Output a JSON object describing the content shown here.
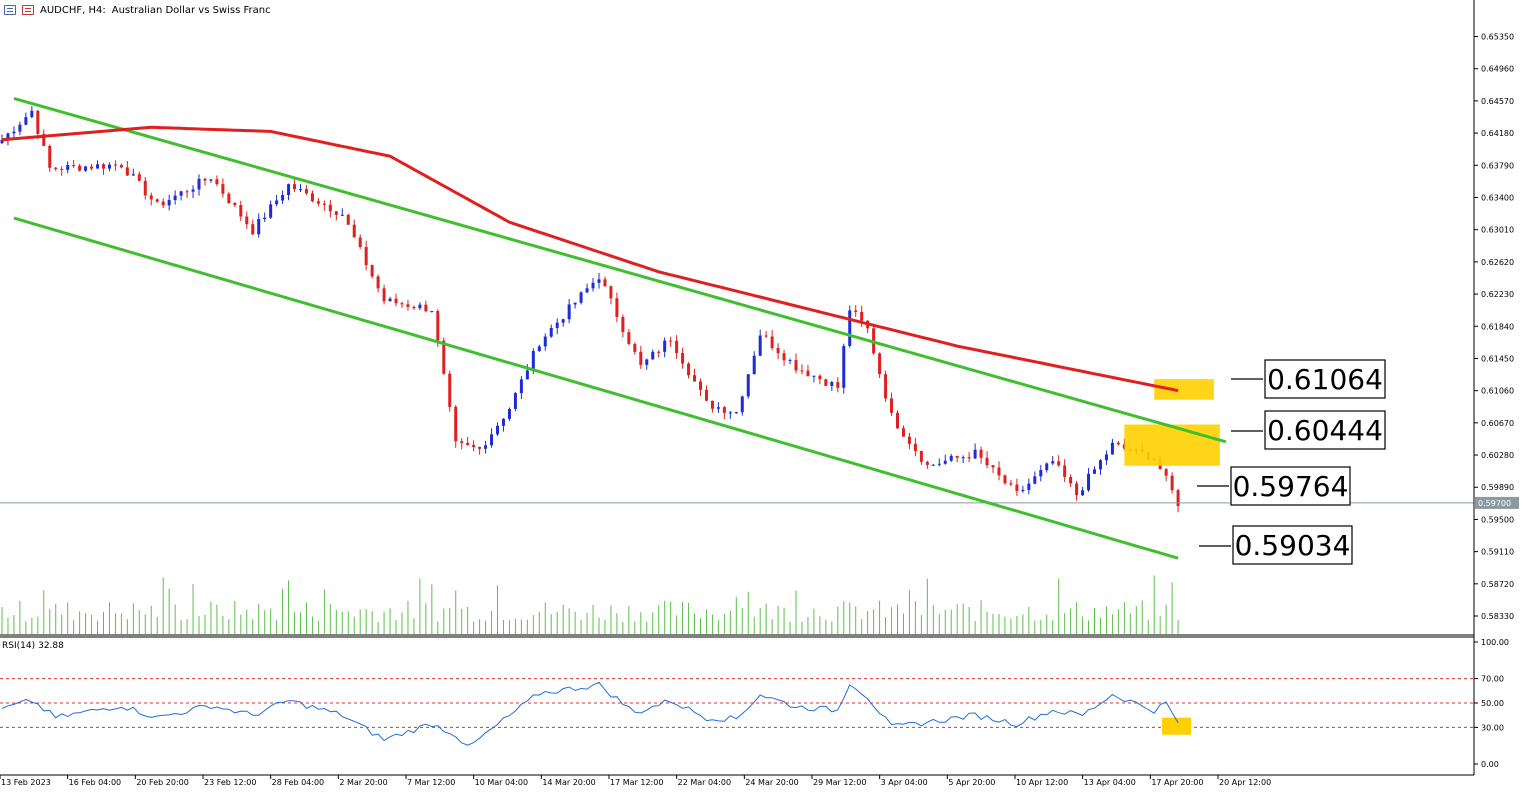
{
  "header": {
    "symbol_timeframe": "AUDCHF, H4:",
    "description": "Australian Dollar vs Swiss Franc"
  },
  "price_axis_ticks": [
    "0.65350",
    "0.64960",
    "0.64570",
    "0.64180",
    "0.63790",
    "0.63400",
    "0.63010",
    "0.62620",
    "0.62230",
    "0.61840",
    "0.61450",
    "0.61060",
    "0.60670",
    "0.60280",
    "0.59890",
    "0.59500",
    "0.59110",
    "0.58720",
    "0.58330"
  ],
  "current_price_tag": "0.59700",
  "rsi": {
    "name": "RSI(14)",
    "value": "32.88",
    "ticks": [
      "100.00",
      "70.00",
      "50.00",
      "30.00",
      "0.00"
    ],
    "levels": [
      70,
      50,
      30
    ],
    "current_marker_color": "#ffd000",
    "line_color": "#1e6fd9",
    "level_color": "#e03030"
  },
  "time_axis_labels": [
    "13 Feb 2023",
    "16 Feb 04:00",
    "20 Feb 20:00",
    "23 Feb 12:00",
    "28 Feb 04:00",
    "2 Mar 20:00",
    "7 Mar 12:00",
    "10 Mar 04:00",
    "14 Mar 20:00",
    "17 Mar 12:00",
    "22 Mar 04:00",
    "24 Mar 20:00",
    "29 Mar 12:00",
    "3 Apr 04:00",
    "5 Apr 20:00",
    "10 Apr 12:00",
    "13 Apr 04:00",
    "17 Apr 20:00",
    "20 Apr 12:00"
  ],
  "level_callouts": [
    {
      "label": "0.61064"
    },
    {
      "label": "0.60444"
    },
    {
      "label": "0.59764"
    },
    {
      "label": "0.59034"
    }
  ],
  "colors": {
    "bull_candle": "#1d2cd9",
    "bear_candle": "#e01f1f",
    "moving_average": "#e01f1f",
    "channel": "#3fbf2f",
    "volume": "#5bbf4a",
    "highlight": "#ffd000",
    "grid": "#000000"
  },
  "chart_data": {
    "type": "candlestick",
    "symbol": "AUDCHF",
    "timeframe": "H4",
    "ylim": [
      0.581,
      0.6555
    ],
    "n_bars": 198,
    "key_points": [
      {
        "bar": 0,
        "close": 0.641
      },
      {
        "bar": 5,
        "close": 0.6445
      },
      {
        "bar": 8,
        "close": 0.6375
      },
      {
        "bar": 20,
        "close": 0.638
      },
      {
        "bar": 26,
        "close": 0.633
      },
      {
        "bar": 35,
        "close": 0.6365
      },
      {
        "bar": 42,
        "close": 0.63
      },
      {
        "bar": 48,
        "close": 0.6355
      },
      {
        "bar": 57,
        "close": 0.632
      },
      {
        "bar": 64,
        "close": 0.6215
      },
      {
        "bar": 72,
        "close": 0.6205
      },
      {
        "bar": 76,
        "close": 0.604
      },
      {
        "bar": 80,
        "close": 0.6035
      },
      {
        "bar": 85,
        "close": 0.6085
      },
      {
        "bar": 90,
        "close": 0.6165
      },
      {
        "bar": 100,
        "close": 0.6245
      },
      {
        "bar": 107,
        "close": 0.6135
      },
      {
        "bar": 112,
        "close": 0.617
      },
      {
        "bar": 118,
        "close": 0.609
      },
      {
        "bar": 123,
        "close": 0.608
      },
      {
        "bar": 127,
        "close": 0.6175
      },
      {
        "bar": 133,
        "close": 0.6135
      },
      {
        "bar": 140,
        "close": 0.611
      },
      {
        "bar": 142,
        "close": 0.6205
      },
      {
        "bar": 145,
        "close": 0.618
      },
      {
        "bar": 149,
        "close": 0.6075
      },
      {
        "bar": 155,
        "close": 0.6015
      },
      {
        "bar": 163,
        "close": 0.603
      },
      {
        "bar": 170,
        "close": 0.598
      },
      {
        "bar": 176,
        "close": 0.602
      },
      {
        "bar": 180,
        "close": 0.598
      },
      {
        "bar": 186,
        "close": 0.604
      },
      {
        "bar": 193,
        "close": 0.6025
      },
      {
        "bar": 197,
        "close": 0.597
      }
    ],
    "moving_average": [
      {
        "bar": 0,
        "value": 0.641
      },
      {
        "bar": 25,
        "value": 0.6425
      },
      {
        "bar": 45,
        "value": 0.642
      },
      {
        "bar": 65,
        "value": 0.639
      },
      {
        "bar": 85,
        "value": 0.631
      },
      {
        "bar": 110,
        "value": 0.625
      },
      {
        "bar": 135,
        "value": 0.6205
      },
      {
        "bar": 160,
        "value": 0.616
      },
      {
        "bar": 197,
        "value": 0.6106
      }
    ],
    "channel_upper": [
      {
        "bar": 2,
        "value": 0.646
      },
      {
        "bar": 205,
        "value": 0.6044
      }
    ],
    "channel_lower": [
      {
        "bar": 2,
        "value": 0.6315
      },
      {
        "bar": 197,
        "value": 0.5903
      }
    ],
    "highlight_boxes": [
      {
        "bar_from": 193,
        "bar_to": 203,
        "y_from": 0.6095,
        "y_to": 0.612
      },
      {
        "bar_from": 188,
        "bar_to": 204,
        "y_from": 0.6015,
        "y_to": 0.6065
      }
    ],
    "rsi_points": [
      {
        "bar": 0,
        "value": 45
      },
      {
        "bar": 5,
        "value": 52
      },
      {
        "bar": 9,
        "value": 38
      },
      {
        "bar": 20,
        "value": 48
      },
      {
        "bar": 26,
        "value": 38
      },
      {
        "bar": 35,
        "value": 48
      },
      {
        "bar": 42,
        "value": 40
      },
      {
        "bar": 48,
        "value": 52
      },
      {
        "bar": 57,
        "value": 40
      },
      {
        "bar": 64,
        "value": 20
      },
      {
        "bar": 72,
        "value": 33
      },
      {
        "bar": 76,
        "value": 24
      },
      {
        "bar": 78,
        "value": 13
      },
      {
        "bar": 83,
        "value": 32
      },
      {
        "bar": 90,
        "value": 58
      },
      {
        "bar": 100,
        "value": 65
      },
      {
        "bar": 106,
        "value": 42
      },
      {
        "bar": 112,
        "value": 52
      },
      {
        "bar": 118,
        "value": 38
      },
      {
        "bar": 123,
        "value": 37
      },
      {
        "bar": 127,
        "value": 57
      },
      {
        "bar": 133,
        "value": 47
      },
      {
        "bar": 140,
        "value": 44
      },
      {
        "bar": 142,
        "value": 67
      },
      {
        "bar": 145,
        "value": 55
      },
      {
        "bar": 149,
        "value": 30
      },
      {
        "bar": 156,
        "value": 35
      },
      {
        "bar": 163,
        "value": 40
      },
      {
        "bar": 170,
        "value": 33
      },
      {
        "bar": 176,
        "value": 44
      },
      {
        "bar": 181,
        "value": 40
      },
      {
        "bar": 186,
        "value": 57
      },
      {
        "bar": 193,
        "value": 44
      },
      {
        "bar": 195,
        "value": 50
      },
      {
        "bar": 197,
        "value": 33
      }
    ]
  }
}
